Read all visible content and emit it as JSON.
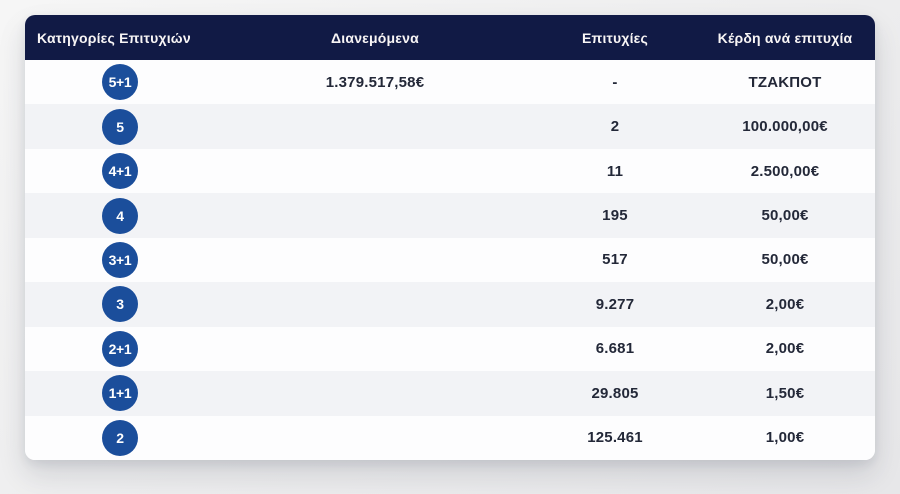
{
  "table": {
    "columns": [
      {
        "key": "category",
        "label": "Κατηγορίες Επιτυχιών"
      },
      {
        "key": "distributed",
        "label": "Διανεμόμενα"
      },
      {
        "key": "wins",
        "label": "Επιτυχίες"
      },
      {
        "key": "prize",
        "label": "Κέρδη ανά επιτυχία"
      }
    ],
    "rows": [
      {
        "category": "5+1",
        "distributed": "1.379.517,58€",
        "wins": "-",
        "prize": "ΤΖΑΚΠΟΤ"
      },
      {
        "category": "5",
        "distributed": "",
        "wins": "2",
        "prize": "100.000,00€"
      },
      {
        "category": "4+1",
        "distributed": "",
        "wins": "11",
        "prize": "2.500,00€"
      },
      {
        "category": "4",
        "distributed": "",
        "wins": "195",
        "prize": "50,00€"
      },
      {
        "category": "3+1",
        "distributed": "",
        "wins": "517",
        "prize": "50,00€"
      },
      {
        "category": "3",
        "distributed": "",
        "wins": "9.277",
        "prize": "2,00€"
      },
      {
        "category": "2+1",
        "distributed": "",
        "wins": "6.681",
        "prize": "2,00€"
      },
      {
        "category": "1+1",
        "distributed": "",
        "wins": "29.805",
        "prize": "1,50€"
      },
      {
        "category": "2",
        "distributed": "",
        "wins": "125.461",
        "prize": "1,00€"
      }
    ],
    "colors": {
      "header_bg": "#111a45",
      "badge_bg": "#1b4e9b",
      "row_bg": "#fdfdfe",
      "row_alt_bg": "#f2f3f6",
      "text": "#232838"
    }
  }
}
